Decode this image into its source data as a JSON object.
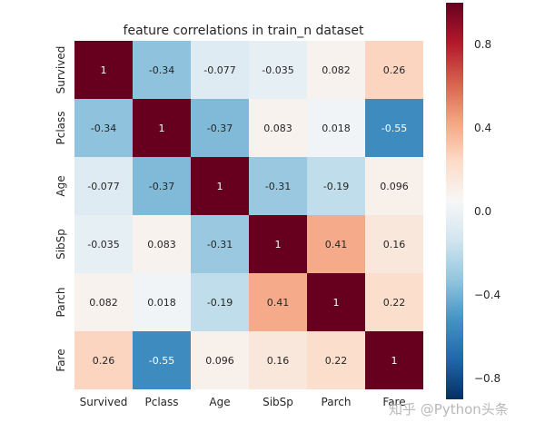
{
  "chart_data": {
    "type": "heatmap",
    "title": "feature correlations in train_n dataset",
    "xlabel": "",
    "ylabel": "",
    "x_categories": [
      "Survived",
      "Pclass",
      "Age",
      "SibSp",
      "Parch",
      "Fare"
    ],
    "y_categories": [
      "Survived",
      "Pclass",
      "Age",
      "SibSp",
      "Parch",
      "Fare"
    ],
    "values": [
      [
        1,
        -0.34,
        -0.077,
        -0.035,
        0.082,
        0.26
      ],
      [
        -0.34,
        1,
        -0.37,
        0.083,
        0.018,
        -0.55
      ],
      [
        -0.077,
        -0.37,
        1,
        -0.31,
        -0.19,
        0.096
      ],
      [
        -0.035,
        0.083,
        -0.31,
        1,
        0.41,
        0.16
      ],
      [
        0.082,
        0.018,
        -0.19,
        0.41,
        1,
        0.22
      ],
      [
        0.26,
        -0.55,
        0.096,
        0.16,
        0.22,
        1
      ]
    ],
    "annotations": [
      [
        "1",
        "-0.34",
        "-0.077",
        "-0.035",
        "0.082",
        "0.26"
      ],
      [
        "-0.34",
        "1",
        "-0.37",
        "0.083",
        "0.018",
        "-0.55"
      ],
      [
        "-0.077",
        "-0.37",
        "1",
        "-0.31",
        "-0.19",
        "0.096"
      ],
      [
        "-0.035",
        "0.083",
        "-0.31",
        "1",
        "0.41",
        "0.16"
      ],
      [
        "0.082",
        "0.018",
        "-0.19",
        "0.41",
        "1",
        "0.22"
      ],
      [
        "0.26",
        "-0.55",
        "0.096",
        "0.16",
        "0.22",
        "1"
      ]
    ],
    "colormap": "RdBu_r",
    "colorbar": {
      "range": [
        -0.9,
        1.0
      ],
      "ticks": [
        -0.8,
        -0.4,
        0.0,
        0.4,
        0.8
      ],
      "tick_labels": [
        "−0.8",
        "−0.4",
        "0.0",
        "0.4",
        "0.8"
      ],
      "position": "right"
    },
    "grid": false,
    "legend": "none"
  },
  "watermark": "知乎 @Python头条"
}
